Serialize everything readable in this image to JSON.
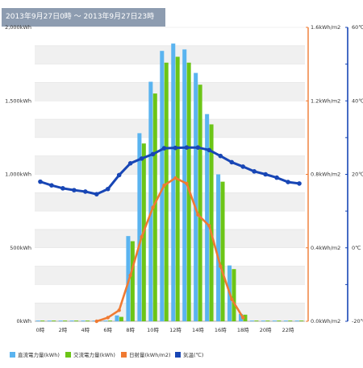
{
  "header": {
    "period": "2013年9月27日0時 ～ 2013年9月27日23時"
  },
  "chart_data": {
    "type": "bar",
    "x": [
      0,
      1,
      2,
      3,
      4,
      5,
      6,
      7,
      8,
      9,
      10,
      11,
      12,
      13,
      14,
      15,
      16,
      17,
      18,
      19,
      20,
      21,
      22,
      23
    ],
    "x_tick_labels": [
      "0時",
      "2時",
      "4時",
      "6時",
      "8時",
      "10時",
      "12時",
      "14時",
      "16時",
      "18時",
      "20時",
      "22時"
    ],
    "x_tick_hours": [
      0,
      2,
      4,
      6,
      8,
      10,
      12,
      14,
      16,
      18,
      20,
      22
    ],
    "axes": {
      "y_left": {
        "unit_label_suffix": "kWh",
        "ticks": [
          "0kWh",
          "500kWh",
          "1,000kWh",
          "1,500kWh",
          "2,000kWh"
        ],
        "range": [
          0,
          2000
        ]
      },
      "y_right1": {
        "ticks": [
          "0.0kWh/m2",
          "0.4kWh/m2",
          "0.8kWh/m2",
          "1.2kWh/m2",
          "1.6kWh/m2"
        ],
        "range": [
          0,
          1.6
        ],
        "color": "#f07a32"
      },
      "y_right2": {
        "ticks": [
          "-20℃",
          "0℃",
          "20℃",
          "40℃",
          "60℃"
        ],
        "range": [
          -20,
          60
        ],
        "color": "#1846b5"
      }
    },
    "series": [
      {
        "name": "直流電力量(kWh)",
        "type": "bar",
        "axis": "y_left",
        "color": "#5ab4f0",
        "values": [
          5,
          5,
          5,
          5,
          5,
          5,
          5,
          40,
          580,
          1280,
          1630,
          1840,
          1890,
          1850,
          1690,
          1410,
          1000,
          380,
          50,
          5,
          5,
          5,
          5,
          5
        ]
      },
      {
        "name": "交流電力量(kWh)",
        "type": "bar",
        "axis": "y_left",
        "color": "#6cc517",
        "values": [
          5,
          5,
          5,
          5,
          5,
          5,
          5,
          30,
          545,
          1210,
          1550,
          1760,
          1800,
          1760,
          1610,
          1340,
          950,
          355,
          45,
          5,
          5,
          5,
          5,
          5
        ]
      },
      {
        "name": "日射量(kWh/m2)",
        "type": "line",
        "axis": "y_right1",
        "color": "#f07a32",
        "values": [
          null,
          null,
          null,
          null,
          null,
          0.0,
          0.02,
          0.06,
          0.25,
          0.46,
          0.62,
          0.74,
          0.78,
          0.75,
          0.58,
          0.52,
          0.3,
          0.12,
          0.02,
          null,
          null,
          null,
          null,
          null
        ]
      },
      {
        "name": "気温(℃)",
        "type": "line",
        "axis": "y_right2",
        "color": "#1846b5",
        "values": [
          18,
          17,
          16.2,
          15.7,
          15.3,
          14.6,
          16,
          19.8,
          23,
          24.3,
          25.5,
          27.1,
          27.2,
          27.3,
          27.3,
          26.6,
          25,
          23.3,
          22.1,
          20.8,
          20,
          19.1,
          17.9,
          17.5
        ]
      }
    ],
    "grid": true,
    "legend_position": "bottom-left"
  }
}
